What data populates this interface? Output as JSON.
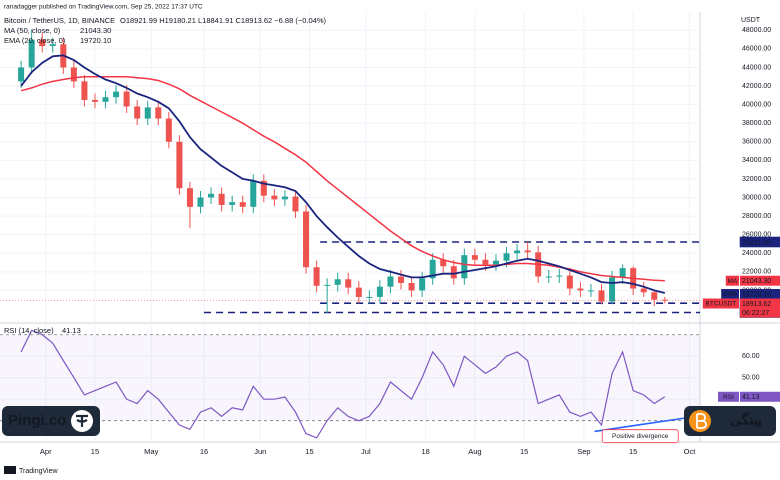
{
  "chart_data": {
    "type": "candlestick",
    "title": "Bitcoin / TetherUS, 1D, BINANCE",
    "ohlc_text": "O18921.99 H19180.21 L18841.91 C18913.62 −6.88 (−0.04%)",
    "publisher": "ranadagger published on TradingView.com, Sep 25, 2022 17:37 UTC",
    "currency": "USDT",
    "footer": "TradingView",
    "watermark_left": "Pingi.co",
    "watermark_right": "پینگی",
    "up_color": "#26a69a",
    "down_color": "#ef5350",
    "grid": true,
    "x": [
      84,
      87,
      90,
      93,
      96,
      99,
      102,
      105,
      108,
      111,
      114,
      117,
      120,
      123,
      126,
      129,
      132,
      135,
      138,
      141,
      144,
      147,
      150,
      153,
      156,
      159,
      162,
      165,
      168,
      171,
      174,
      177,
      180,
      183,
      186,
      189,
      192,
      195,
      198,
      201,
      204,
      207,
      210,
      213,
      216,
      219,
      222,
      225,
      228,
      231,
      234,
      237,
      240,
      243,
      246,
      249,
      252,
      255,
      258,
      261,
      264,
      267
    ],
    "xlim": [
      78,
      277
    ],
    "xticks": [
      {
        "value": 91,
        "label": "Apr"
      },
      {
        "value": 105,
        "label": "15"
      },
      {
        "value": 121,
        "label": "May"
      },
      {
        "value": 136,
        "label": "16"
      },
      {
        "value": 152,
        "label": "Jun"
      },
      {
        "value": 166,
        "label": "15"
      },
      {
        "value": 182,
        "label": "Jul"
      },
      {
        "value": 199,
        "label": "18"
      },
      {
        "value": 213,
        "label": "Aug"
      },
      {
        "value": 227,
        "label": "15"
      },
      {
        "value": 244,
        "label": "Sep"
      },
      {
        "value": 258,
        "label": "15"
      },
      {
        "value": 274,
        "label": "Oct"
      }
    ],
    "ylim": [
      16600,
      49000
    ],
    "yticks": [
      {
        "value": 20000,
        "label": "20000.00"
      },
      {
        "value": 22000,
        "label": "22000.00"
      },
      {
        "value": 24000,
        "label": "24000.00"
      },
      {
        "value": 26000,
        "label": "26000.00"
      },
      {
        "value": 28000,
        "label": "28000.00"
      },
      {
        "value": 30000,
        "label": "30000.00"
      },
      {
        "value": 32000,
        "label": "32000.00"
      },
      {
        "value": 34000,
        "label": "34000.00"
      },
      {
        "value": 36000,
        "label": "36000.00"
      },
      {
        "value": 38000,
        "label": "38000.00"
      },
      {
        "value": 40000,
        "label": "40000.00"
      },
      {
        "value": 42000,
        "label": "42000.00"
      },
      {
        "value": 44000,
        "label": "44000.00"
      },
      {
        "value": 46000,
        "label": "46000.00"
      },
      {
        "value": 48000,
        "label": "48000.00"
      }
    ],
    "open": [
      42500,
      44000,
      47000,
      46300,
      46500,
      44000,
      42500,
      40500,
      40300,
      40800,
      41400,
      39800,
      38500,
      39700,
      38500,
      36000,
      31000,
      29000,
      30000,
      30400,
      29200,
      29500,
      29000,
      31800,
      30200,
      29800,
      30100,
      28500,
      22500,
      20500,
      20600,
      21200,
      20300,
      19300,
      19300,
      20400,
      21500,
      20800,
      20000,
      21300,
      23300,
      22600,
      21300,
      23800,
      23300,
      22800,
      23200,
      24000,
      24300,
      24100,
      21500,
      21500,
      21600,
      20200,
      20000,
      20000,
      18800,
      21400,
      22400,
      20200,
      19800,
      19000
    ],
    "high": [
      44700,
      48100,
      47700,
      47200,
      47200,
      44700,
      43200,
      41200,
      41500,
      42100,
      42100,
      40500,
      40400,
      40400,
      39200,
      36700,
      31700,
      30700,
      31100,
      31100,
      30200,
      30200,
      32500,
      32500,
      30900,
      30800,
      30800,
      29200,
      23200,
      21300,
      21900,
      21900,
      21000,
      20000,
      21100,
      22200,
      22200,
      21500,
      22000,
      24000,
      24000,
      23300,
      24500,
      24500,
      24000,
      23900,
      24700,
      25000,
      25211,
      24800,
      22200,
      22300,
      22300,
      20900,
      20700,
      20700,
      22100,
      22800,
      22600,
      20900,
      20000,
      19300
    ],
    "low": [
      41800,
      43300,
      45600,
      45600,
      43300,
      41800,
      39800,
      39600,
      39600,
      40100,
      39100,
      37800,
      37800,
      37800,
      35300,
      30300,
      26700,
      28300,
      29300,
      28500,
      28500,
      28300,
      28300,
      29500,
      29100,
      29100,
      27800,
      21800,
      19800,
      17600,
      19900,
      19600,
      18600,
      18600,
      18600,
      19700,
      20100,
      19300,
      19300,
      20600,
      21900,
      20600,
      20600,
      22600,
      22100,
      22100,
      22500,
      23300,
      23400,
      20800,
      20800,
      20800,
      19500,
      19300,
      19300,
      18500,
      18500,
      20700,
      19500,
      19300,
      18300,
      18600
    ],
    "close": [
      44000,
      47000,
      46300,
      46500,
      44000,
      42500,
      40500,
      40300,
      40800,
      41400,
      39800,
      38500,
      39700,
      38500,
      36000,
      31000,
      29000,
      30000,
      30400,
      29200,
      29500,
      29000,
      31800,
      30200,
      29800,
      30100,
      28500,
      22500,
      20500,
      20600,
      21200,
      20300,
      19300,
      19300,
      20400,
      21500,
      20800,
      20000,
      21300,
      23300,
      22600,
      21300,
      23800,
      23300,
      22800,
      23200,
      24000,
      24300,
      24100,
      21500,
      21500,
      21600,
      20200,
      20000,
      20000,
      18800,
      21400,
      22400,
      20200,
      19800,
      19000,
      18900
    ],
    "series": [
      {
        "name": "MA (50, close, 0)",
        "value_label": "21043.30",
        "color": "#f23645",
        "values": [
          41500,
          41800,
          42200,
          42500,
          42700,
          42900,
          43000,
          43000,
          43000,
          43000,
          43000,
          42900,
          42800,
          42600,
          42200,
          41700,
          41000,
          40400,
          39800,
          39200,
          38600,
          38000,
          37300,
          36600,
          36000,
          35300,
          34600,
          33800,
          32800,
          31800,
          30900,
          30000,
          29100,
          28200,
          27300,
          26400,
          25600,
          24800,
          24200,
          23700,
          23300,
          23000,
          22800,
          22700,
          22700,
          22700,
          22800,
          22900,
          22900,
          22800,
          22700,
          22500,
          22300,
          22000,
          21800,
          21600,
          21500,
          21400,
          21300,
          21200,
          21100,
          21043.3
        ]
      },
      {
        "name": "EMA (20, close, 0)",
        "value_label": "19720.10",
        "color": "#1a237e",
        "values": [
          42000,
          43500,
          44500,
          45200,
          45300,
          44800,
          44000,
          43300,
          42700,
          42300,
          41800,
          41200,
          40800,
          40300,
          39600,
          38200,
          36500,
          35200,
          34300,
          33400,
          32700,
          32000,
          31800,
          31500,
          31300,
          31100,
          30700,
          29500,
          28000,
          26800,
          25700,
          24700,
          23700,
          22900,
          22300,
          22000,
          21700,
          21400,
          21400,
          21600,
          21800,
          21800,
          22000,
          22200,
          22400,
          22600,
          22900,
          23200,
          23400,
          23200,
          22900,
          22600,
          22200,
          21800,
          21400,
          20900,
          20800,
          20900,
          20700,
          20400,
          20000,
          19720.1
        ]
      }
    ],
    "levels": [
      {
        "value": 25211,
        "label": "25211.00",
        "from": 169,
        "color": "#1a237e"
      },
      {
        "value": 18626,
        "label": "18626.00",
        "from": 169,
        "color": "#1a237e"
      },
      {
        "value": 17622,
        "label": "17622.00",
        "from": 136,
        "color": "#1a237e"
      }
    ],
    "price_tags": [
      {
        "tag": "MA",
        "value": 21043.3,
        "label": "21043.30",
        "color": "#f23645"
      },
      {
        "tag": "EMA",
        "value": 19720.1,
        "label": "19720.10",
        "color": "#1a237e"
      },
      {
        "tag": "BTCUSDT",
        "value": 18913.62,
        "label": "18913.62",
        "sub": "06:22:27",
        "color": "#f23645"
      }
    ],
    "rsi": {
      "name": "RSI (14, close)",
      "value_label": "41.13",
      "tag": "RSI",
      "color": "#7e57c2",
      "ylim": [
        21,
        75
      ],
      "yticks": [
        {
          "value": 40,
          "label": "40.00"
        },
        {
          "value": 50,
          "label": "50.00"
        },
        {
          "value": 60,
          "label": "60.00"
        }
      ],
      "levels": [
        70,
        30
      ],
      "values": [
        62,
        72,
        70,
        66,
        58,
        50,
        42,
        44,
        46,
        48,
        40,
        38,
        44,
        40,
        34,
        28,
        26,
        34,
        36,
        32,
        36,
        35,
        46,
        40,
        40,
        41,
        34,
        24,
        22,
        30,
        36,
        32,
        30,
        32,
        38,
        48,
        44,
        40,
        50,
        62,
        56,
        46,
        60,
        56,
        52,
        55,
        60,
        62,
        58,
        38,
        40,
        42,
        34,
        32,
        34,
        28,
        52,
        62,
        44,
        42,
        38,
        41.13
      ],
      "trendline": {
        "x": [
          247,
          276
        ],
        "values": [
          25,
          32
        ],
        "color": "#2962ff"
      },
      "annotation": {
        "text": "Positive divergence",
        "x": 260,
        "value": 23,
        "color": "#f23645"
      }
    }
  }
}
